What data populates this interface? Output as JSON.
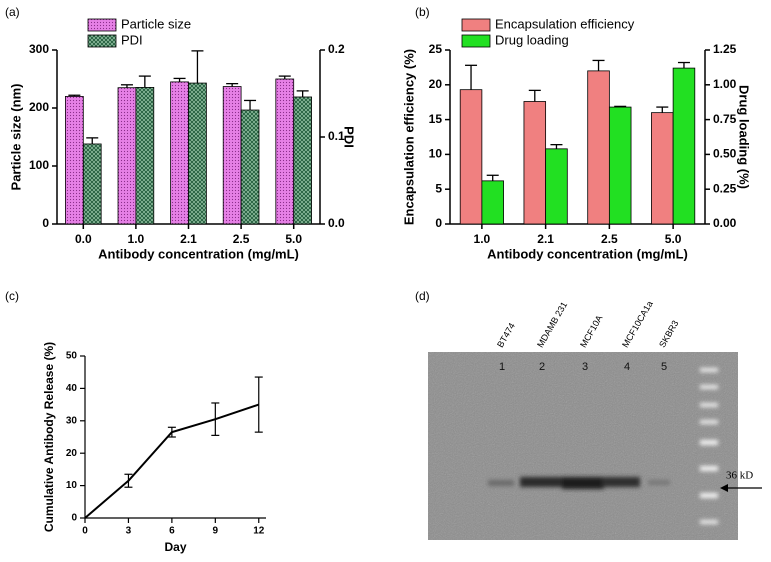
{
  "chart_data": [
    {
      "type": "bar",
      "label": "(a)",
      "categories": [
        "0.0",
        "1.0",
        "2.1",
        "2.5",
        "5.0"
      ],
      "xlabel": "Antibody concentration (mg/mL)",
      "ylabel": "Particle size (nm)",
      "y2label": "PDI",
      "ylim": [
        0,
        300
      ],
      "yticks": [
        0,
        100,
        200,
        300
      ],
      "y2lim": [
        0,
        0.2
      ],
      "y2ticks": [
        {
          "value": 0,
          "label": "0.0"
        },
        0.1,
        0.2
      ],
      "legend": "upper left",
      "series": [
        {
          "name": "Particle size",
          "color": "#e680e6",
          "values": [
            220,
            235,
            245,
            237,
            250
          ],
          "errors": [
            2,
            5,
            6,
            5,
            5
          ]
        },
        {
          "name": "PDI",
          "color": "#1f5a3a",
          "axis": "y2",
          "values": [
            0.092,
            0.157,
            0.162,
            0.131,
            0.146
          ],
          "errors": [
            0.007,
            0.013,
            0.037,
            0.011,
            0.007
          ]
        }
      ]
    },
    {
      "type": "bar",
      "label": "(b)",
      "categories": [
        "1.0",
        "2.1",
        "2.5",
        "5.0"
      ],
      "xlabel": "Antibody concentration (mg/mL)",
      "ylabel": "Encapsulation efficiency (%)",
      "y2label": "Drug loading (%)",
      "ylim": [
        0,
        25
      ],
      "yticks": [
        0,
        5,
        10,
        15,
        20,
        25
      ],
      "y2lim": [
        0,
        1.25
      ],
      "y2ticks": [
        {
          "value": 0,
          "label": "0.00"
        },
        {
          "value": 0.25,
          "label": "0.25"
        },
        {
          "value": 0.5,
          "label": "0.50"
        },
        {
          "value": 0.75,
          "label": "0.75"
        },
        {
          "value": 1,
          "label": "1.00"
        },
        {
          "value": 1.25,
          "label": "1.25"
        }
      ],
      "legend": "upper left",
      "series": [
        {
          "name": "Encapsulation efficiency",
          "color": "#f08080",
          "values": [
            19.3,
            17.6,
            22,
            16
          ],
          "errors": [
            3.5,
            1.6,
            1.5,
            0.8
          ]
        },
        {
          "name": "Drug loading",
          "color": "#22e022",
          "axis": "y2",
          "values": [
            0.31,
            0.54,
            0.84,
            1.12
          ],
          "errors": [
            0.04,
            0.03,
            0.005,
            0.04
          ]
        }
      ]
    },
    {
      "type": "line",
      "label": "(c)",
      "xlabel": "Day",
      "ylabel": "Cumulative Antibody Release (%)",
      "x": [
        0,
        3,
        6,
        9,
        12
      ],
      "values": [
        0,
        11.5,
        26.5,
        30.5,
        35
      ],
      "errors": [
        0,
        2,
        1.5,
        5,
        8.5
      ],
      "xlim": [
        0,
        12.5
      ],
      "xticks": [
        0,
        3,
        6,
        9,
        12
      ],
      "ylim": [
        0,
        50
      ],
      "yticks": [
        0,
        10,
        20,
        30,
        40,
        50
      ],
      "color": "#000000"
    }
  ],
  "gel": {
    "label": "(d)",
    "lanes": [
      "BT474",
      "MDAMB 231",
      "MCF10A",
      "MCF10CA1a",
      "SKBR3"
    ],
    "numbers": [
      "1",
      "2",
      "3",
      "4",
      "5"
    ],
    "marker": "36 kD"
  }
}
